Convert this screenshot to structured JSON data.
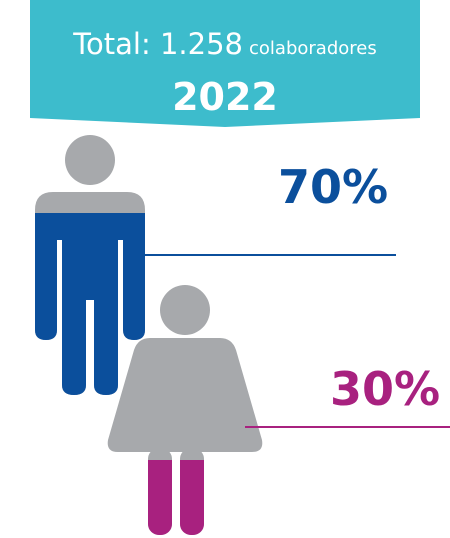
{
  "chart_data": {
    "type": "pictogram",
    "title": "Total: 1.258",
    "subtitle": "colaboradores",
    "year": "2022",
    "values": [
      70,
      30
    ],
    "value_labels": [
      "70%",
      "30%"
    ],
    "colors": [
      "#0b4f9c",
      "#a8217f"
    ],
    "base_color": "#a7a9ac",
    "banner_color": "#3dbccc"
  }
}
